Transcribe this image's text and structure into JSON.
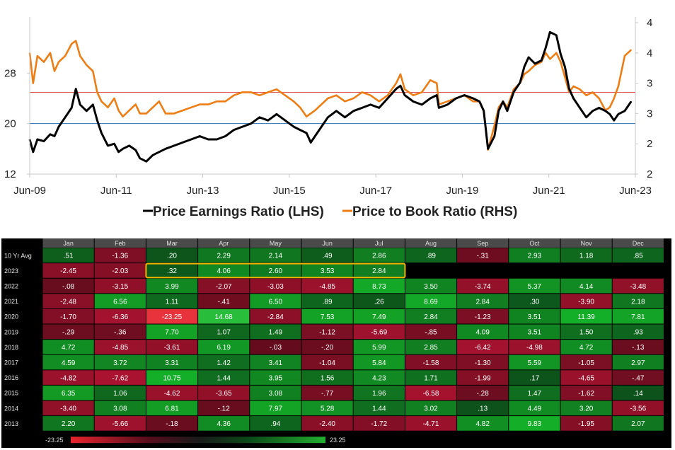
{
  "chart_data": [
    {
      "type": "line",
      "title": "",
      "x_tick_labels": [
        "Jun-09",
        "Jun-11",
        "Jun-13",
        "Jun-15",
        "Jun-17",
        "Jun-19",
        "Jun-21",
        "Jun-23"
      ],
      "x_range": [
        2009.42,
        2023.6
      ],
      "left_axis": {
        "label": "Price Earnings Ratio (LHS)",
        "ticks": [
          12,
          20,
          28
        ],
        "range": [
          12,
          36
        ]
      },
      "right_axis": {
        "label": "Price to Book Ratio (RHS)",
        "tick_labels": [
          "2",
          "2",
          "3",
          "3",
          "4",
          "4"
        ],
        "tick_values": [
          2.0,
          2.5,
          3.0,
          3.5,
          4.0,
          4.5
        ],
        "range": [
          2.0,
          4.5
        ]
      },
      "reference_lines": [
        {
          "axis": "left",
          "value": 20,
          "color": "#2a6fb0"
        },
        {
          "axis": "right",
          "value": 3.35,
          "color": "#e05555"
        }
      ],
      "legend": {
        "position": "bottom-center",
        "entries": [
          {
            "label": "Price Earnings Ratio (LHS)",
            "color": "#000000"
          },
          {
            "label": "Price to Book Ratio (RHS)",
            "color": "#ed7d14"
          }
        ]
      },
      "series": [
        {
          "name": "Price Earnings Ratio (LHS)",
          "axis": "left",
          "color": "#000000",
          "x": [
            2009.42,
            2009.5,
            2009.6,
            2009.75,
            2009.9,
            2010.0,
            2010.1,
            2010.25,
            2010.4,
            2010.5,
            2010.6,
            2010.75,
            2010.9,
            2011.0,
            2011.1,
            2011.25,
            2011.4,
            2011.5,
            2011.6,
            2011.75,
            2011.9,
            2012.0,
            2012.15,
            2012.3,
            2012.45,
            2012.6,
            2012.8,
            2013.0,
            2013.2,
            2013.4,
            2013.6,
            2013.8,
            2014.0,
            2014.2,
            2014.4,
            2014.6,
            2014.8,
            2015.0,
            2015.2,
            2015.4,
            2015.6,
            2015.75,
            2015.9,
            2016.0,
            2016.1,
            2016.25,
            2016.4,
            2016.6,
            2016.8,
            2017.0,
            2017.2,
            2017.4,
            2017.6,
            2017.8,
            2018.0,
            2018.1,
            2018.2,
            2018.4,
            2018.6,
            2018.8,
            2018.95,
            2019.0,
            2019.2,
            2019.4,
            2019.6,
            2019.8,
            2019.95,
            2020.05,
            2020.15,
            2020.3,
            2020.4,
            2020.5,
            2020.6,
            2020.75,
            2020.9,
            2021.0,
            2021.1,
            2021.25,
            2021.4,
            2021.5,
            2021.6,
            2021.75,
            2021.85,
            2021.95,
            2022.05,
            2022.15,
            2022.3,
            2022.45,
            2022.6,
            2022.75,
            2022.9,
            2023.0,
            2023.1,
            2023.2,
            2023.35,
            2023.5
          ],
          "values": [
            17.5,
            15.5,
            17.5,
            17.2,
            18.3,
            18.0,
            19.5,
            21.0,
            22.5,
            25.5,
            23.0,
            22.0,
            23.0,
            20.5,
            18.5,
            16.5,
            16.8,
            15.5,
            16.0,
            16.5,
            15.8,
            14.5,
            14.0,
            15.0,
            15.5,
            16.0,
            16.5,
            17.0,
            17.5,
            18.0,
            17.5,
            17.5,
            18.0,
            19.0,
            19.5,
            20.0,
            21.0,
            20.5,
            21.5,
            20.5,
            19.5,
            19.0,
            18.5,
            17.0,
            18.0,
            19.5,
            21.0,
            22.0,
            21.0,
            22.0,
            22.5,
            23.0,
            22.5,
            24.0,
            25.5,
            26.0,
            24.5,
            23.5,
            23.0,
            24.0,
            24.5,
            22.5,
            23.0,
            24.0,
            24.5,
            24.0,
            23.5,
            22.0,
            16.0,
            18.0,
            22.0,
            23.5,
            22.0,
            25.0,
            26.5,
            29.0,
            30.5,
            29.5,
            30.0,
            32.0,
            34.5,
            34.0,
            31.0,
            29.0,
            25.5,
            24.0,
            22.5,
            21.0,
            22.0,
            22.5,
            22.0,
            21.5,
            20.5,
            21.5,
            22.0,
            23.5
          ]
        },
        {
          "name": "Price to Book Ratio (RHS)",
          "axis": "right",
          "color": "#ed7d14",
          "x": [
            2009.42,
            2009.5,
            2009.6,
            2009.75,
            2009.9,
            2010.0,
            2010.1,
            2010.25,
            2010.4,
            2010.5,
            2010.6,
            2010.75,
            2010.9,
            2011.0,
            2011.1,
            2011.25,
            2011.4,
            2011.5,
            2011.6,
            2011.75,
            2011.9,
            2012.0,
            2012.15,
            2012.3,
            2012.45,
            2012.6,
            2012.8,
            2013.0,
            2013.2,
            2013.4,
            2013.6,
            2013.8,
            2014.0,
            2014.2,
            2014.4,
            2014.6,
            2014.8,
            2015.0,
            2015.2,
            2015.4,
            2015.6,
            2015.75,
            2015.9,
            2016.0,
            2016.1,
            2016.25,
            2016.4,
            2016.6,
            2016.8,
            2017.0,
            2017.2,
            2017.4,
            2017.6,
            2017.8,
            2018.0,
            2018.1,
            2018.2,
            2018.4,
            2018.6,
            2018.8,
            2018.95,
            2019.0,
            2019.2,
            2019.4,
            2019.6,
            2019.8,
            2019.95,
            2020.05,
            2020.15,
            2020.3,
            2020.4,
            2020.5,
            2020.6,
            2020.75,
            2020.9,
            2021.0,
            2021.1,
            2021.25,
            2021.4,
            2021.5,
            2021.6,
            2021.75,
            2021.85,
            2021.95,
            2022.05,
            2022.15,
            2022.3,
            2022.45,
            2022.6,
            2022.75,
            2022.9,
            2023.0,
            2023.1,
            2023.2,
            2023.35,
            2023.5
          ],
          "values": [
            4.0,
            3.5,
            3.95,
            3.85,
            4.0,
            3.7,
            3.85,
            3.95,
            4.15,
            4.2,
            3.95,
            3.8,
            3.7,
            3.35,
            3.2,
            3.1,
            3.25,
            3.05,
            2.95,
            3.05,
            3.15,
            3.0,
            3.0,
            3.1,
            3.2,
            3.0,
            3.0,
            3.05,
            3.1,
            3.15,
            3.15,
            3.2,
            3.2,
            3.3,
            3.35,
            3.35,
            3.3,
            3.35,
            3.4,
            3.3,
            3.2,
            3.1,
            2.95,
            3.0,
            3.05,
            3.15,
            3.25,
            3.3,
            3.2,
            3.25,
            3.35,
            3.3,
            3.2,
            3.3,
            3.5,
            3.65,
            3.4,
            3.3,
            3.35,
            3.55,
            3.5,
            3.15,
            3.2,
            3.25,
            3.3,
            3.2,
            3.2,
            3.05,
            2.4,
            2.8,
            3.1,
            3.2,
            3.1,
            3.4,
            3.5,
            3.65,
            3.7,
            3.8,
            3.85,
            4.0,
            3.9,
            4.0,
            3.85,
            3.6,
            3.35,
            3.45,
            3.4,
            3.3,
            3.35,
            3.25,
            3.05,
            3.1,
            3.25,
            3.45,
            3.95,
            4.05
          ]
        }
      ]
    },
    {
      "type": "heatmap",
      "columns": [
        "Jan",
        "Feb",
        "Mar",
        "Apr",
        "May",
        "Jun",
        "Jul",
        "Aug",
        "Sep",
        "Oct",
        "Nov",
        "Dec"
      ],
      "rows": [
        {
          "label": "10 Yr Avg",
          "values": [
            ".51",
            "-1.36",
            ".20",
            "2.29",
            "2.14",
            ".49",
            "2.86",
            ".89",
            "-.31",
            "2.93",
            "1.18",
            ".85"
          ]
        },
        {
          "label": "2023",
          "values": [
            "-2.45",
            "-2.03",
            ".32",
            "4.06",
            "2.60",
            "3.53",
            "2.84",
            "",
            "",
            "",
            "",
            ""
          ]
        },
        {
          "label": "2022",
          "values": [
            "-.08",
            "-3.15",
            "3.99",
            "-2.07",
            "-3.03",
            "-4.85",
            "8.73",
            "3.50",
            "-3.74",
            "5.37",
            "4.14",
            "-3.48"
          ]
        },
        {
          "label": "2021",
          "values": [
            "-2.48",
            "6.56",
            "1.11",
            "-.41",
            "6.50",
            ".89",
            ".26",
            "8.69",
            "2.84",
            ".30",
            "-3.90",
            "2.18"
          ]
        },
        {
          "label": "2020",
          "values": [
            "-1.70",
            "-6.36",
            "-23.25",
            "14.68",
            "-2.84",
            "7.53",
            "7.49",
            "2.84",
            "-1.23",
            "3.51",
            "11.39",
            "7.81"
          ]
        },
        {
          "label": "2019",
          "values": [
            "-.29",
            "-.36",
            "7.70",
            "1.07",
            "1.49",
            "-1.12",
            "-5.69",
            "-.85",
            "4.09",
            "3.51",
            "1.50",
            ".93"
          ]
        },
        {
          "label": "2018",
          "values": [
            "4.72",
            "-4.85",
            "-3.61",
            "6.19",
            "-.03",
            "-.20",
            "5.99",
            "2.85",
            "-6.42",
            "-4.98",
            "4.72",
            "-.13"
          ]
        },
        {
          "label": "2017",
          "values": [
            "4.59",
            "3.72",
            "3.31",
            "1.42",
            "3.41",
            "-1.04",
            "5.84",
            "-1.58",
            "-1.30",
            "5.59",
            "-1.05",
            "2.97"
          ]
        },
        {
          "label": "2016",
          "values": [
            "-4.82",
            "-7.62",
            "10.75",
            "1.44",
            "3.95",
            "1.56",
            "4.23",
            "1.71",
            "-1.99",
            ".17",
            "-4.65",
            "-.47"
          ]
        },
        {
          "label": "2015",
          "values": [
            "6.35",
            "1.06",
            "-4.62",
            "-3.65",
            "3.08",
            "-.77",
            "1.96",
            "-6.58",
            "-.28",
            "1.47",
            "-1.62",
            ".14"
          ]
        },
        {
          "label": "2014",
          "values": [
            "-3.40",
            "3.08",
            "6.81",
            "-.12",
            "7.97",
            "5.28",
            "1.44",
            "3.02",
            ".13",
            "4.49",
            "3.20",
            "-3.56"
          ]
        },
        {
          "label": "2013",
          "values": [
            "2.20",
            "-5.66",
            "-.18",
            "4.36",
            ".94",
            "-2.40",
            "-1.72",
            "-4.71",
            "4.82",
            "9.83",
            "-1.95",
            "2.07"
          ]
        }
      ],
      "highlight": {
        "row": "2023",
        "columns": [
          "Mar",
          "Jul"
        ],
        "color": "#f0b400"
      },
      "color_scale": {
        "min_label": "-23.25",
        "max_label": "23.25",
        "min_color": "#e8242e",
        "max_color": "#22b030"
      }
    }
  ]
}
